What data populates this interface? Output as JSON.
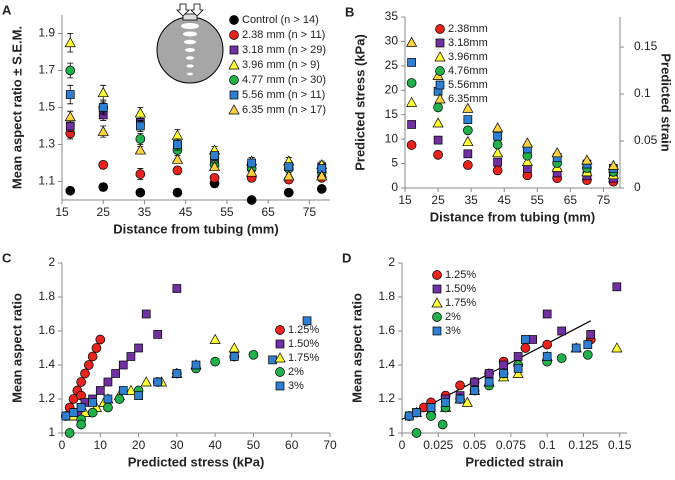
{
  "chart_data": [
    {
      "type": "scatter",
      "panel": "A",
      "xlabel": "Distance from tubing (mm)",
      "ylabel": "Mean aspect ratio ± S.E.M.",
      "x": [
        17,
        25,
        34,
        43,
        52,
        61,
        70,
        78
      ],
      "xlim": [
        15,
        80
      ],
      "xticks": [
        15,
        25,
        35,
        45,
        55,
        65,
        75
      ],
      "ylim": [
        1.0,
        2.0
      ],
      "yticks": [
        1.1,
        1.3,
        1.5,
        1.7,
        1.9
      ],
      "legend": "upper right",
      "series": [
        {
          "name": "Control (n > 14)",
          "color": "#000000",
          "marker": "circle",
          "values": [
            1.05,
            1.07,
            1.04,
            1.04,
            1.09,
            1.0,
            1.04,
            1.06
          ],
          "errors": [
            0.01,
            0.02,
            0.01,
            0.01,
            0.02,
            0.01,
            0.01,
            0.01
          ]
        },
        {
          "name": "2.38 mm (n > 11)",
          "color": "#e8231e",
          "marker": "circle",
          "values": [
            1.36,
            1.19,
            1.14,
            1.16,
            1.12,
            1.12,
            1.11,
            1.12
          ],
          "errors": [
            0.03,
            0.02,
            0.03,
            0.02,
            0.02,
            0.02,
            0.01,
            0.01
          ]
        },
        {
          "name": "3.18 mm (n > 29)",
          "color": "#7030a0",
          "marker": "square",
          "values": [
            1.4,
            1.46,
            1.42,
            1.29,
            1.21,
            1.18,
            1.18,
            1.18
          ],
          "errors": [
            0.03,
            0.03,
            0.03,
            0.02,
            0.02,
            0.02,
            0.01,
            0.01
          ]
        },
        {
          "name": "3.96 mm (n > 9)",
          "color": "#ffff33",
          "marker": "triangle",
          "values": [
            1.85,
            1.58,
            1.47,
            1.35,
            1.27,
            1.21,
            1.21,
            1.19
          ],
          "errors": [
            0.05,
            0.04,
            0.03,
            0.03,
            0.02,
            0.02,
            0.02,
            0.02
          ]
        },
        {
          "name": "4.77 mm (n > 30)",
          "color": "#22b04a",
          "marker": "circle",
          "values": [
            1.7,
            1.5,
            1.33,
            1.27,
            1.19,
            1.17,
            1.17,
            1.15
          ],
          "errors": [
            0.04,
            0.03,
            0.03,
            0.02,
            0.02,
            0.02,
            0.01,
            0.01
          ]
        },
        {
          "name": "5.56 mm (n > 11)",
          "color": "#2f7fd0",
          "marker": "square",
          "values": [
            1.57,
            1.5,
            1.4,
            1.3,
            1.24,
            1.2,
            1.18,
            1.17
          ],
          "errors": [
            0.05,
            0.04,
            0.03,
            0.03,
            0.02,
            0.02,
            0.02,
            0.02
          ]
        },
        {
          "name": "6.35 mm (n > 17)",
          "color": "#ffd040",
          "marker": "triangle",
          "values": [
            1.45,
            1.37,
            1.27,
            1.22,
            1.18,
            1.15,
            1.13,
            1.13
          ],
          "errors": [
            0.03,
            0.03,
            0.02,
            0.02,
            0.02,
            0.01,
            0.01,
            0.01
          ]
        }
      ]
    },
    {
      "type": "scatter",
      "panel": "B",
      "xlabel": "Distance from tubing (mm)",
      "ylabel": "Predicted stress (kPa)",
      "y2label": "Predicted strain",
      "x": [
        17,
        25,
        34,
        43,
        52,
        61,
        70,
        78
      ],
      "xlim": [
        15,
        80
      ],
      "xticks": [
        15,
        25,
        35,
        45,
        55,
        65,
        75
      ],
      "ylim": [
        0,
        35
      ],
      "yticks": [
        0,
        5,
        10,
        15,
        20,
        25,
        30,
        35
      ],
      "y2lim": [
        0,
        0.182
      ],
      "y2ticks": [
        0,
        0.05,
        0.1,
        0.15
      ],
      "legend": "upper left",
      "series": [
        {
          "name": "2.38mm",
          "color": "#e8231e",
          "marker": "circle",
          "values": [
            8.8,
            6.8,
            4.7,
            3.6,
            2.6,
            2.0,
            1.6,
            1.3
          ]
        },
        {
          "name": "3.18mm",
          "color": "#7030a0",
          "marker": "square",
          "values": [
            13,
            9.8,
            7.0,
            5.3,
            4.0,
            3.1,
            2.5,
            2.0
          ]
        },
        {
          "name": "3.96mm",
          "color": "#ffff33",
          "marker": "triangle",
          "values": [
            17.5,
            13.3,
            9.5,
            7.2,
            5.4,
            4.2,
            3.3,
            2.7
          ]
        },
        {
          "name": "4.76mm",
          "color": "#22b04a",
          "marker": "circle",
          "values": [
            21.5,
            16.5,
            11.8,
            8.9,
            6.6,
            5.1,
            4.1,
            3.3
          ]
        },
        {
          "name": "5.56mm",
          "color": "#2f7fd0",
          "marker": "square",
          "values": [
            25.7,
            19.8,
            14,
            10.6,
            8,
            6.2,
            4.9,
            4
          ]
        },
        {
          "name": "6.35mm",
          "color": "#ffd040",
          "marker": "triangle",
          "values": [
            29.8,
            23,
            16.3,
            12.3,
            9.2,
            7.2,
            5.7,
            4.6
          ]
        }
      ]
    },
    {
      "type": "scatter",
      "panel": "C",
      "xlabel": "Predicted stress (kPa)",
      "ylabel": "Mean aspect ratio",
      "xlim": [
        0,
        70
      ],
      "xticks": [
        0,
        10,
        20,
        30,
        40,
        50,
        60,
        70
      ],
      "ylim": [
        1,
        2
      ],
      "yticks": [
        1,
        1.2,
        1.4,
        1.6,
        1.8,
        2
      ],
      "legend": "center right",
      "series": [
        {
          "name": "1.25%",
          "color": "#e8231e",
          "marker": "circle",
          "x": [
            1,
            2,
            3,
            4,
            5,
            6,
            7,
            8,
            9,
            10,
            3,
            5
          ],
          "values": [
            1.1,
            1.15,
            1.2,
            1.25,
            1.3,
            1.35,
            1.4,
            1.45,
            1.5,
            1.55,
            1.12,
            1.22
          ]
        },
        {
          "name": "1.50%",
          "color": "#7030a0",
          "marker": "square",
          "x": [
            2,
            4,
            6,
            8,
            10,
            12,
            14,
            16,
            18,
            20,
            22,
            25,
            30,
            5
          ],
          "values": [
            1.1,
            1.12,
            1.18,
            1.2,
            1.25,
            1.3,
            1.35,
            1.4,
            1.45,
            1.5,
            1.7,
            1.58,
            1.85,
            1.15
          ]
        },
        {
          "name": "1.75%",
          "color": "#ffff33",
          "marker": "triangle",
          "x": [
            3,
            6,
            9,
            12,
            15,
            18,
            22,
            26,
            30,
            35,
            40,
            45,
            11
          ],
          "values": [
            1.1,
            1.12,
            1.15,
            1.2,
            1.22,
            1.25,
            1.3,
            1.3,
            1.35,
            1.4,
            1.55,
            1.5,
            1.18
          ]
        },
        {
          "name": "2%",
          "color": "#22b04a",
          "marker": "circle",
          "x": [
            2,
            5,
            8,
            12,
            15,
            20,
            25,
            30,
            35,
            40,
            45,
            50,
            5
          ],
          "values": [
            1.0,
            1.08,
            1.12,
            1.15,
            1.2,
            1.25,
            1.3,
            1.35,
            1.38,
            1.42,
            1.45,
            1.46,
            1.05
          ]
        },
        {
          "name": "3%",
          "color": "#2f7fd0",
          "marker": "square",
          "x": [
            1,
            3,
            5,
            8,
            12,
            16,
            20,
            25,
            30,
            35,
            45,
            55,
            64
          ],
          "values": [
            1.1,
            1.12,
            1.15,
            1.18,
            1.2,
            1.25,
            1.22,
            1.3,
            1.35,
            1.4,
            1.45,
            1.43,
            1.66
          ]
        }
      ]
    },
    {
      "type": "scatter",
      "panel": "D",
      "xlabel": "Predicted strain",
      "ylabel": "Mean aspect ratio",
      "xlim": [
        0,
        0.155
      ],
      "xticks": [
        0,
        0.025,
        0.05,
        0.075,
        0.1,
        0.125,
        0.15
      ],
      "ylim": [
        1,
        2
      ],
      "yticks": [
        1,
        1.2,
        1.4,
        1.6,
        1.8,
        2
      ],
      "legend": "upper left",
      "trendline": {
        "x": [
          0,
          0.13
        ],
        "y": [
          1.08,
          1.66
        ]
      },
      "series": [
        {
          "name": "1.25%",
          "color": "#e8231e",
          "marker": "circle",
          "x": [
            0.005,
            0.01,
            0.015,
            0.02,
            0.03,
            0.04,
            0.05,
            0.06,
            0.07,
            0.085,
            0.1,
            0.13
          ],
          "values": [
            1.1,
            1.12,
            1.15,
            1.18,
            1.22,
            1.28,
            1.3,
            1.35,
            1.42,
            1.5,
            1.52,
            1.55
          ]
        },
        {
          "name": "1.50%",
          "color": "#7030a0",
          "marker": "square",
          "x": [
            0.005,
            0.01,
            0.02,
            0.03,
            0.04,
            0.05,
            0.06,
            0.07,
            0.08,
            0.09,
            0.1,
            0.11,
            0.13,
            0.148
          ],
          "values": [
            1.1,
            1.12,
            1.15,
            1.2,
            1.22,
            1.3,
            1.35,
            1.4,
            1.45,
            1.55,
            1.7,
            1.6,
            1.58,
            1.86
          ]
        },
        {
          "name": "1.75%",
          "color": "#ffff33",
          "marker": "triangle",
          "x": [
            0.01,
            0.02,
            0.03,
            0.04,
            0.05,
            0.06,
            0.07,
            0.08,
            0.1,
            0.12,
            0.148,
            0.045
          ],
          "values": [
            1.12,
            1.13,
            1.15,
            1.2,
            1.25,
            1.3,
            1.33,
            1.35,
            1.45,
            1.5,
            1.5,
            1.18
          ]
        },
        {
          "name": "2%",
          "color": "#22b04a",
          "marker": "circle",
          "x": [
            0.01,
            0.02,
            0.03,
            0.04,
            0.05,
            0.06,
            0.07,
            0.08,
            0.1,
            0.11,
            0.128,
            0.028
          ],
          "values": [
            1.0,
            1.1,
            1.15,
            1.2,
            1.25,
            1.28,
            1.35,
            1.4,
            1.42,
            1.44,
            1.46,
            1.05
          ]
        },
        {
          "name": "3%",
          "color": "#2f7fd0",
          "marker": "square",
          "x": [
            0.005,
            0.01,
            0.02,
            0.03,
            0.04,
            0.05,
            0.06,
            0.07,
            0.08,
            0.1,
            0.12,
            0.128,
            0.085
          ],
          "values": [
            1.1,
            1.12,
            1.15,
            1.18,
            1.2,
            1.25,
            1.3,
            1.35,
            1.38,
            1.45,
            1.5,
            1.52,
            1.55
          ]
        }
      ]
    }
  ]
}
